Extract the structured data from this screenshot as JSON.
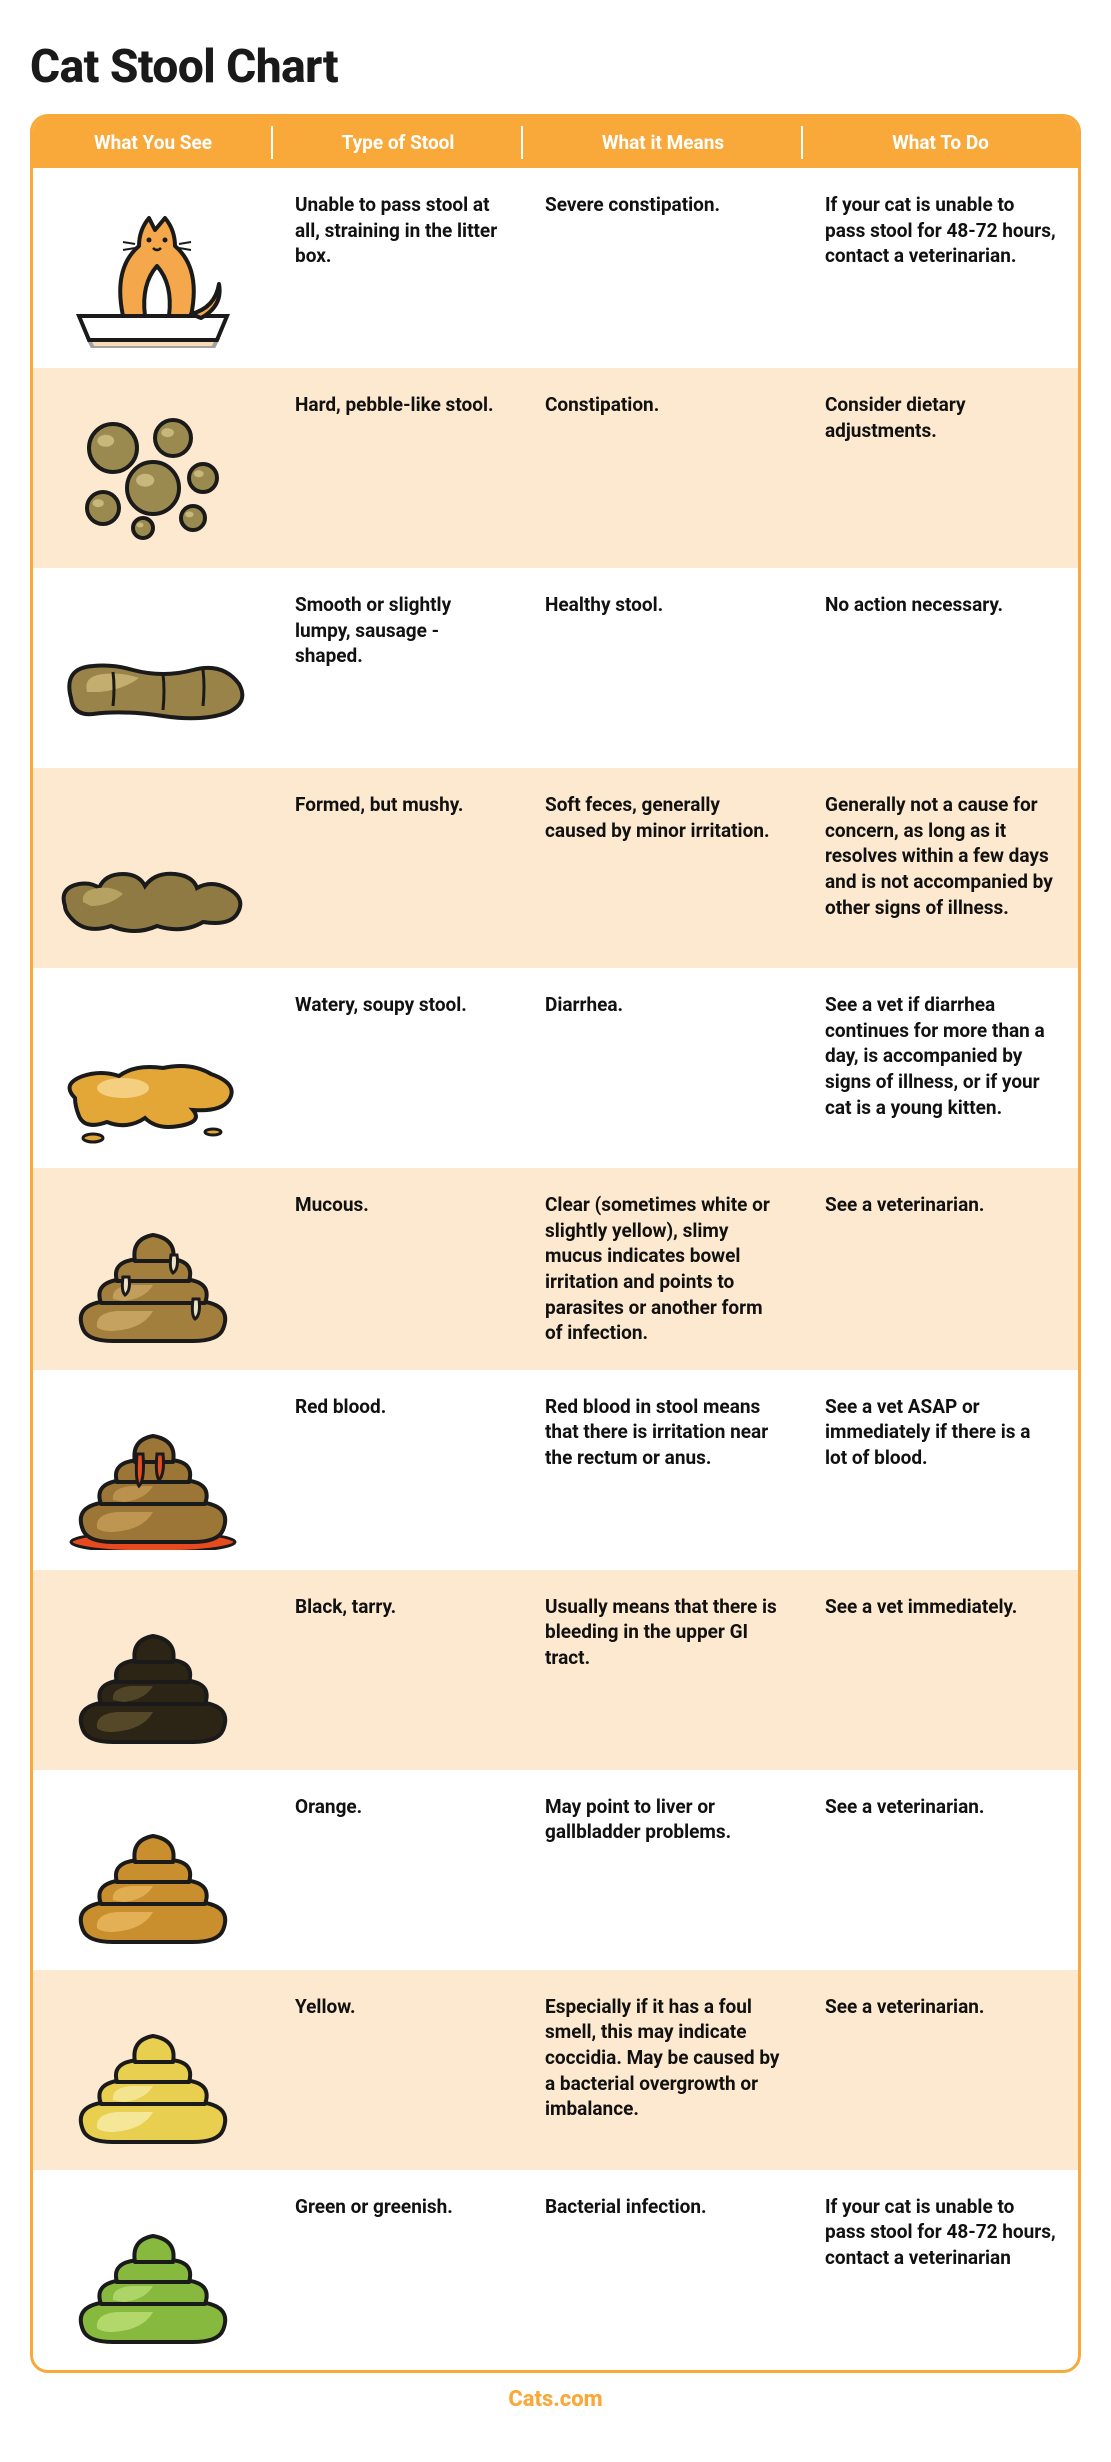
{
  "title": "Cat Stool Chart",
  "headers": {
    "c1": "What You See",
    "c2": "Type of Stool",
    "c3": "What it Means",
    "c4": "What To Do"
  },
  "colors": {
    "accent": "#f8a93a",
    "alt_row": "#fde9cf",
    "text": "#111111",
    "outline": "#1a1a1a"
  },
  "rows": [
    {
      "icon": "cat-litter-box",
      "type": "Unable to pass stool at all, straining in the litter box.",
      "means": "Severe constipation.",
      "todo": "If your cat is unable to pass stool for 48-72 hours, contact a veterinarian.",
      "icon_colors": {
        "body": "#f4a84b",
        "outline": "#1a1a1a",
        "white": "#ffffff",
        "box": "#f4a84b"
      }
    },
    {
      "icon": "pebbles",
      "type": "Hard, pebble-like stool.",
      "means": "Constipation.",
      "todo": "Consider dietary adjustments.",
      "icon_colors": {
        "fill": "#9b8a4f",
        "highlight": "#c8b77a",
        "outline": "#1a1a1a"
      }
    },
    {
      "icon": "sausage",
      "type": "Smooth or slightly lumpy, sausage - shaped.",
      "means": "Healthy stool.",
      "todo": "No action necessary.",
      "icon_colors": {
        "fill": "#9a8348",
        "highlight": "#c3ad6f",
        "outline": "#1a1a1a"
      }
    },
    {
      "icon": "mushy",
      "type": "Formed, but mushy.",
      "means": "Soft feces, generally caused by minor irritation.",
      "todo": "Generally not a cause for concern, as long as it resolves within a few days and is not accompanied by other signs of illness.",
      "icon_colors": {
        "fill": "#8e7a42",
        "highlight": "#b5a263",
        "outline": "#1a1a1a"
      }
    },
    {
      "icon": "puddle",
      "type": "Watery, soupy stool.",
      "means": "Diarrhea.",
      "todo": "See a vet if diarrhea continues for more than a day, is accompanied by signs of illness, or if your cat is a young kitten.",
      "icon_colors": {
        "fill": "#e2a736",
        "highlight": "#f3cf7f",
        "outline": "#1a1a1a"
      }
    },
    {
      "icon": "swirl",
      "type": "Mucous.",
      "means": "Clear (sometimes white or slightly yellow), slimy mucus indicates bowel irritation and points to parasites or another form of infection.",
      "todo": "See a veterinarian.",
      "icon_colors": {
        "fill": "#a37f3e",
        "highlight": "#c9a664",
        "outline": "#1a1a1a",
        "accent": "#ece3c7"
      }
    },
    {
      "icon": "swirl-blood",
      "type": "Red blood.",
      "means": "Red blood in stool means  that there is irritation near the rectum or anus.",
      "todo": "See a vet ASAP or immediately if there is a lot of blood.",
      "icon_colors": {
        "fill": "#9c7636",
        "highlight": "#c29a55",
        "outline": "#1a1a1a",
        "accent": "#e84a1f"
      }
    },
    {
      "icon": "swirl",
      "type": "Black, tarry.",
      "means": "Usually means that there is bleeding in the upper GI tract.",
      "todo": "See a vet immediately.",
      "icon_colors": {
        "fill": "#2c2414",
        "highlight": "#5a4d2b",
        "outline": "#1a1a1a"
      }
    },
    {
      "icon": "swirl",
      "type": "Orange.",
      "means": "May point to liver or gallbladder problems.",
      "todo": "See a veterinarian.",
      "icon_colors": {
        "fill": "#c98f2f",
        "highlight": "#e6b45a",
        "outline": "#1a1a1a"
      }
    },
    {
      "icon": "swirl",
      "type": "Yellow.",
      "means": "Especially if it has a foul smell, this may indicate coccidia. May be caused by a bacterial overgrowth or imbalance.",
      "todo": "See a veterinarian.",
      "icon_colors": {
        "fill": "#e9cf4f",
        "highlight": "#f6e9a0",
        "outline": "#1a1a1a"
      }
    },
    {
      "icon": "swirl",
      "type": "Green or greenish.",
      "means": "Bacterial infection.",
      "todo": "If your cat is unable to pass stool for 48-72 hours, contact a veterinarian",
      "icon_colors": {
        "fill": "#86b93e",
        "highlight": "#b7db70",
        "outline": "#1a1a1a"
      }
    }
  ],
  "footer": "Cats.com"
}
